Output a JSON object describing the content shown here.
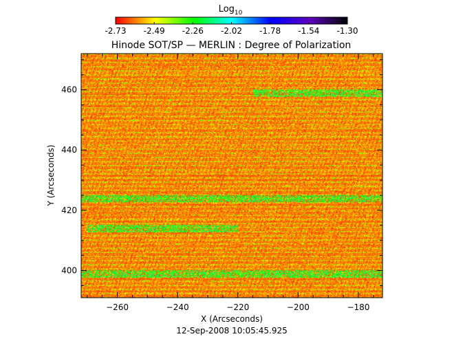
{
  "chart_data": {
    "type": "heatmap",
    "title": "Hinode SOT/SP — MERLIN : Degree of Polarization",
    "xlabel": "X (Arcseconds)",
    "ylabel": "Y (Arcseconds)",
    "footer": "12-Sep-2008 10:05:45.925",
    "xlim": [
      -272,
      -172
    ],
    "ylim": [
      391,
      472
    ],
    "x_ticks": [
      -260,
      -240,
      -220,
      -200,
      -180
    ],
    "y_ticks": [
      400,
      420,
      440,
      460
    ],
    "colorbar": {
      "label": "Log",
      "label_subscript": "10",
      "range": [
        -2.73,
        -1.3
      ],
      "ticks": [
        "-2.73",
        "-2.49",
        "-2.26",
        "-2.02",
        "-1.78",
        "-1.54",
        "-1.30"
      ],
      "colormap": "rainbow-reversed (red → yellow → green → cyan → blue → purple → black)"
    },
    "colors": {
      "low": "#ff0000",
      "mid_low": "#ffff00",
      "mid": "#00ff00",
      "mid_high": "#00ffff",
      "high_blue": "#0000ff",
      "high_purple": "#6000c0",
      "max": "#000000"
    },
    "features": [
      {
        "description": "green band of elevated polarization",
        "x_range": [
          -215,
          -172
        ],
        "y": 459
      },
      {
        "description": "green/cyan streak",
        "x_range": [
          -270,
          -220
        ],
        "y": 414
      },
      {
        "description": "scattered green along rows",
        "y": 424
      },
      {
        "description": "scattered green along rows",
        "y": 399
      }
    ]
  }
}
